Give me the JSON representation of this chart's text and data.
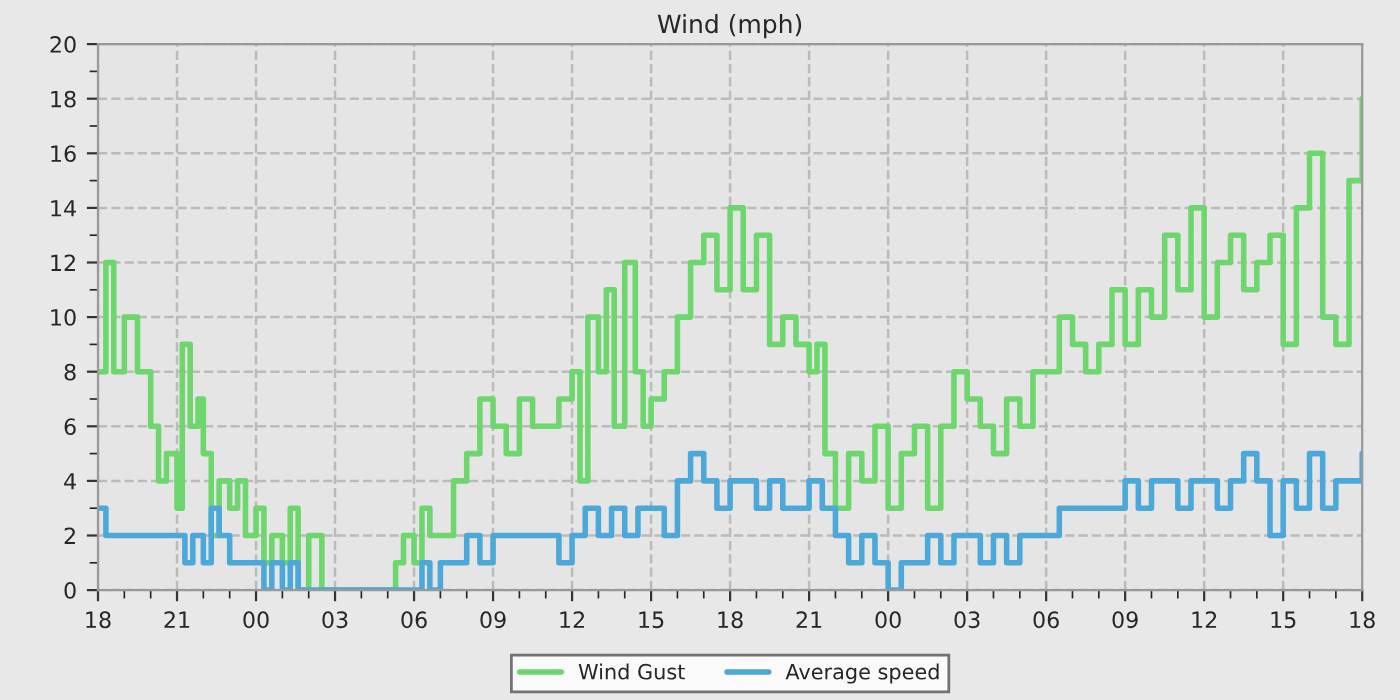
{
  "chart_data": {
    "type": "step",
    "title": "Wind (mph)",
    "xlim": [
      18,
      66
    ],
    "ylim": [
      0,
      20
    ],
    "xticks": [
      18,
      21,
      {
        "value": 24,
        "label": "00"
      },
      {
        "value": 27,
        "label": "03"
      },
      {
        "value": 30,
        "label": "06"
      },
      {
        "value": 33,
        "label": "09"
      },
      {
        "value": 36,
        "label": "12"
      },
      {
        "value": 39,
        "label": "15"
      },
      {
        "value": 42,
        "label": "18"
      },
      {
        "value": 45,
        "label": "21"
      },
      {
        "value": 48,
        "label": "00"
      },
      {
        "value": 51,
        "label": "03"
      },
      {
        "value": 54,
        "label": "06"
      },
      {
        "value": 57,
        "label": "09"
      },
      {
        "value": 60,
        "label": "12"
      },
      {
        "value": 63,
        "label": "15"
      },
      {
        "value": 66,
        "label": "18"
      },
      {
        "value": 19,
        "label": null
      },
      {
        "value": 20,
        "label": null
      },
      {
        "value": 22,
        "label": null
      },
      {
        "value": 23,
        "label": null
      },
      {
        "value": 25,
        "label": null
      },
      {
        "value": 26,
        "label": null
      },
      {
        "value": 28,
        "label": null
      },
      {
        "value": 29,
        "label": null
      },
      {
        "value": 31,
        "label": null
      },
      {
        "value": 32,
        "label": null
      },
      {
        "value": 34,
        "label": null
      },
      {
        "value": 35,
        "label": null
      },
      {
        "value": 37,
        "label": null
      },
      {
        "value": 38,
        "label": null
      },
      {
        "value": 40,
        "label": null
      },
      {
        "value": 41,
        "label": null
      },
      {
        "value": 43,
        "label": null
      },
      {
        "value": 44,
        "label": null
      },
      {
        "value": 46,
        "label": null
      },
      {
        "value": 47,
        "label": null
      },
      {
        "value": 49,
        "label": null
      },
      {
        "value": 50,
        "label": null
      },
      {
        "value": 52,
        "label": null
      },
      {
        "value": 53,
        "label": null
      },
      {
        "value": 55,
        "label": null
      },
      {
        "value": 56,
        "label": null
      },
      {
        "value": 58,
        "label": null
      },
      {
        "value": 59,
        "label": null
      },
      {
        "value": 61,
        "label": null
      },
      {
        "value": 62,
        "label": null
      },
      {
        "value": 64,
        "label": null
      },
      {
        "value": 65,
        "label": null
      }
    ],
    "yticks": [
      0,
      2,
      4,
      6,
      8,
      10,
      12,
      14,
      16,
      18,
      20,
      {
        "value": 1,
        "label": null
      },
      {
        "value": 3,
        "label": null
      },
      {
        "value": 5,
        "label": null
      },
      {
        "value": 7,
        "label": null
      },
      {
        "value": 9,
        "label": null
      },
      {
        "value": 11,
        "label": null
      },
      {
        "value": 13,
        "label": null
      },
      {
        "value": 15,
        "label": null
      },
      {
        "value": 17,
        "label": null
      },
      {
        "value": 19,
        "label": null
      }
    ],
    "grid": true,
    "legend": "bottom",
    "line_style": "solid",
    "marker": "none",
    "series": [
      {
        "name": "Wind Gust",
        "color": "#6dd66d",
        "x": [
          18,
          18.3,
          18.6,
          19,
          19.5,
          20,
          20.3,
          20.6,
          21,
          21.2,
          21.5,
          21.8,
          22,
          22.3,
          22.6,
          23,
          23.3,
          23.6,
          24,
          24.3,
          24.6,
          25,
          25.3,
          25.6,
          26,
          26.5,
          29,
          29.3,
          29.6,
          30,
          30.3,
          30.6,
          31,
          31.5,
          32,
          32.5,
          33,
          33.5,
          34,
          34.5,
          35,
          35.5,
          36,
          36.3,
          36.6,
          37,
          37.3,
          37.6,
          38,
          38.4,
          38.7,
          39,
          39.5,
          40,
          40.5,
          41,
          41.5,
          42,
          42.5,
          43,
          43.5,
          44,
          44.5,
          45,
          45.3,
          45.6,
          46,
          46.5,
          47,
          47.5,
          48,
          48.5,
          49,
          49.5,
          50,
          50.5,
          51,
          51.5,
          52,
          52.5,
          53,
          53.5,
          54,
          54.5,
          55,
          55.5,
          56,
          56.5,
          57,
          57.5,
          58,
          58.5,
          59,
          59.5,
          60,
          60.5,
          61,
          61.5,
          62,
          62.5,
          63,
          63.5,
          64,
          64.5,
          65,
          65.5,
          66
        ],
        "values": [
          8,
          12,
          8,
          10,
          8,
          6,
          4,
          5,
          3,
          9,
          6,
          7,
          5,
          2,
          4,
          3,
          4,
          2,
          3,
          1,
          2,
          1,
          3,
          0,
          2,
          0,
          0,
          1,
          2,
          1,
          3,
          2,
          2,
          4,
          5,
          7,
          6,
          5,
          7,
          6,
          6,
          7,
          8,
          4,
          10,
          8,
          11,
          6,
          12,
          8,
          6,
          7,
          8,
          10,
          12,
          13,
          11,
          14,
          11,
          13,
          9,
          10,
          9,
          8,
          9,
          5,
          3,
          5,
          4,
          6,
          3,
          5,
          6,
          3,
          6,
          8,
          7,
          6,
          5,
          7,
          6,
          8,
          8,
          10,
          9,
          8,
          9,
          11,
          9,
          11,
          10,
          13,
          11,
          14,
          10,
          12,
          13,
          11,
          12,
          13,
          9,
          14,
          16,
          10,
          9,
          15,
          18
        ]
      },
      {
        "name": "Average speed",
        "color": "#4da8da",
        "x": [
          18,
          18.3,
          20,
          21,
          21.3,
          21.6,
          22,
          22.3,
          22.6,
          23,
          24,
          24.3,
          24.6,
          25,
          25.3,
          25.6,
          30,
          30.3,
          30.6,
          31,
          31.5,
          32,
          32.5,
          33,
          33.5,
          34,
          35,
          35.5,
          36,
          36.5,
          37,
          37.5,
          38,
          38.5,
          39,
          39.5,
          40,
          40.5,
          41,
          41.5,
          42,
          42.5,
          43,
          43.5,
          44,
          45,
          45.5,
          46,
          46.5,
          47,
          47.5,
          48,
          48.5,
          49,
          49.5,
          50,
          50.5,
          51,
          51.5,
          52,
          52.5,
          53,
          53.5,
          54,
          54.5,
          55,
          56,
          56.5,
          57,
          57.5,
          58,
          58.5,
          59,
          59.5,
          60,
          60.5,
          61,
          61.5,
          62,
          62.5,
          63,
          63.5,
          64,
          64.5,
          65,
          65.5,
          66
        ],
        "values": [
          3,
          2,
          2,
          2,
          1,
          2,
          1,
          3,
          2,
          1,
          1,
          0,
          1,
          0,
          1,
          0,
          0,
          1,
          0,
          1,
          1,
          2,
          1,
          2,
          2,
          2,
          2,
          1,
          2,
          3,
          2,
          3,
          2,
          3,
          3,
          2,
          4,
          5,
          4,
          3,
          4,
          4,
          3,
          4,
          3,
          4,
          3,
          2,
          1,
          2,
          1,
          0,
          1,
          1,
          2,
          1,
          2,
          2,
          1,
          2,
          1,
          2,
          2,
          2,
          3,
          3,
          3,
          3,
          4,
          3,
          4,
          4,
          3,
          4,
          4,
          3,
          4,
          5,
          4,
          2,
          4,
          3,
          5,
          3,
          4,
          4,
          5
        ]
      }
    ]
  }
}
